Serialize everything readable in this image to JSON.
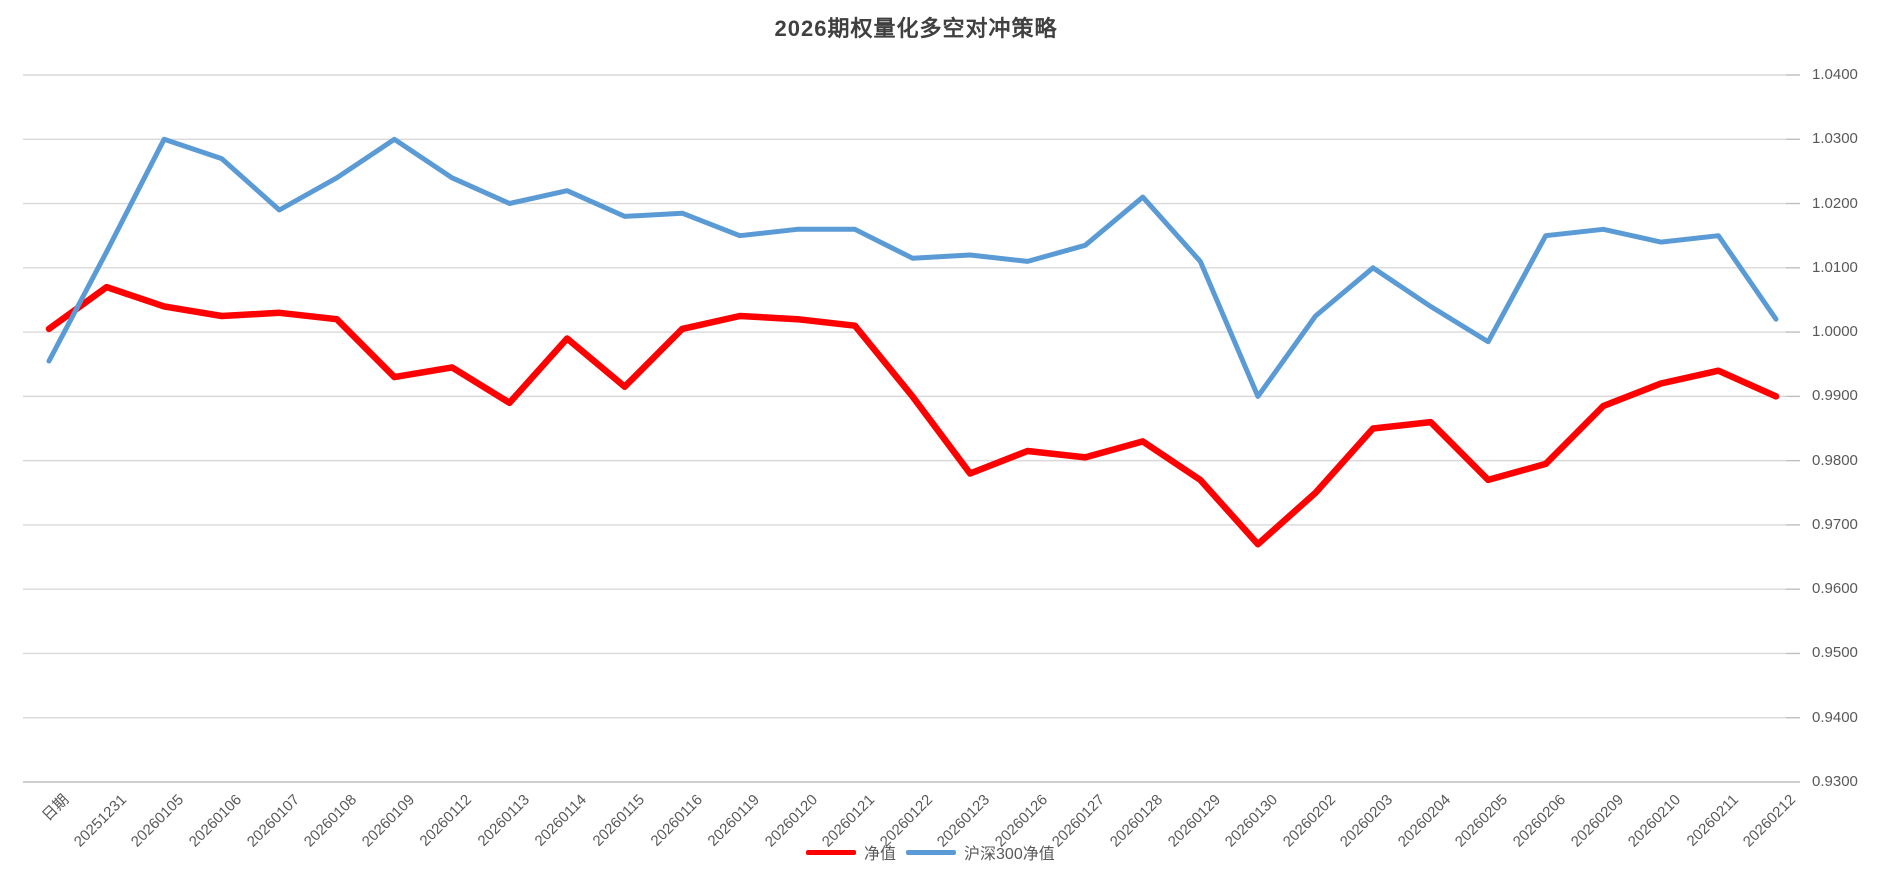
{
  "title": "2026期权量化多空对冲策略",
  "colors": {
    "net_value_line": "#ff0000",
    "hs300_line": "#5b9bd5",
    "gridline": "#d9d9d9",
    "axis": "#bfbfbf",
    "tick_label": "#595959",
    "title_text": "#404040"
  },
  "legend": [
    {
      "label": "净值",
      "color": "#ff0000"
    },
    {
      "label": "沪深300净值",
      "color": "#5b9bd5"
    }
  ],
  "chart_data": {
    "type": "line",
    "title": "2026期权量化多空对冲策略",
    "xlabel": "",
    "ylabel": "",
    "ylim": [
      0.93,
      1.04
    ],
    "grid": true,
    "legend_position": "bottom",
    "y_ticks": [
      "1.0400",
      "1.0300",
      "1.0200",
      "1.0100",
      "1.0000",
      "0.9900",
      "0.9800",
      "0.9700",
      "0.9600",
      "0.9500",
      "0.9400",
      "0.9300"
    ],
    "categories": [
      "日期",
      "20251231",
      "20260105",
      "20260106",
      "20260107",
      "20260108",
      "20260109",
      "20260112",
      "20260113",
      "20260114",
      "20260115",
      "20260116",
      "20260119",
      "20260120",
      "20260121",
      "20260122",
      "20260123",
      "20260126",
      "20260127",
      "20260128",
      "20260129",
      "20260130",
      "20260202",
      "20260203",
      "20260204",
      "20260205",
      "20260206",
      "20260209",
      "20260210",
      "20260211",
      "20260212"
    ],
    "series": [
      {
        "name": "净值",
        "color": "#ff0000",
        "values": [
          1.0005,
          1.007,
          1.004,
          1.0025,
          1.003,
          1.002,
          0.993,
          0.9945,
          0.989,
          0.999,
          0.9915,
          1.0005,
          1.0025,
          1.002,
          1.001,
          0.99,
          0.978,
          0.9815,
          0.9805,
          0.983,
          0.977,
          0.967,
          0.975,
          0.985,
          0.986,
          0.977,
          0.9795,
          0.9885,
          0.992,
          0.994,
          0.99
        ]
      },
      {
        "name": "沪深300净值",
        "color": "#5b9bd5",
        "values": [
          0.9955,
          1.0125,
          1.03,
          1.027,
          1.019,
          1.024,
          1.03,
          1.024,
          1.02,
          1.022,
          1.018,
          1.0185,
          1.015,
          1.016,
          1.016,
          1.0115,
          1.012,
          1.011,
          1.0135,
          1.021,
          1.011,
          0.99,
          1.0025,
          1.01,
          1.004,
          0.9985,
          1.015,
          1.016,
          1.014,
          1.015,
          1.002
        ]
      }
    ]
  }
}
